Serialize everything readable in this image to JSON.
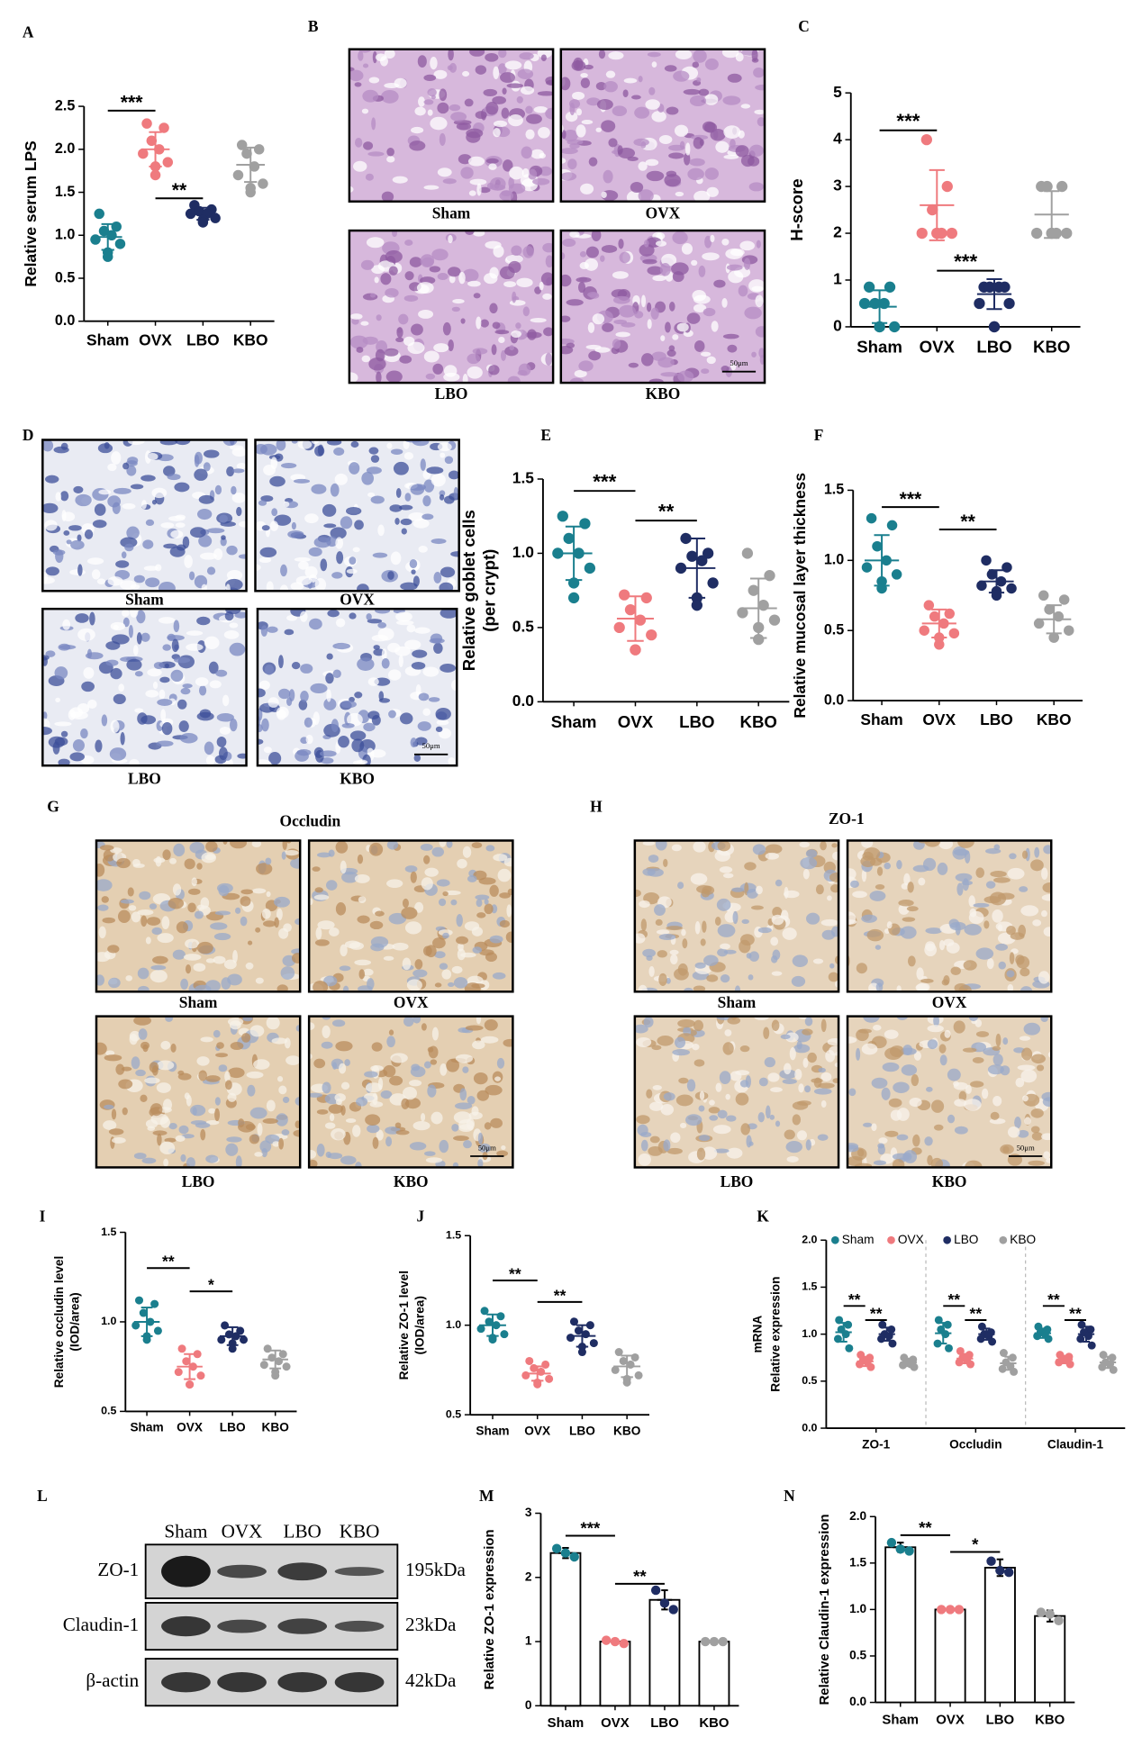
{
  "chart_data": [
    {
      "type": "dot",
      "label": "A",
      "y_label": [
        "Relative serum LPS"
      ],
      "categories": [
        "Sham",
        "OVX",
        "LBO",
        "KBO"
      ],
      "colors": [
        "#1a7f8e",
        "#ef7a7e",
        "#1f2d63",
        "#a0a0a0"
      ],
      "values": [
        [
          1.25,
          1.1,
          1.05,
          1.0,
          0.95,
          0.9,
          0.8,
          0.75
        ],
        [
          2.3,
          2.25,
          2.1,
          2.0,
          1.95,
          1.85,
          1.8,
          1.7
        ],
        [
          1.35,
          1.3,
          1.28,
          1.25,
          1.25,
          1.2,
          1.18,
          1.15
        ],
        [
          2.05,
          2.0,
          1.95,
          1.8,
          1.7,
          1.6,
          1.55,
          1.5
        ]
      ],
      "mean": [
        0.98,
        2.0,
        1.25,
        1.82
      ],
      "sd": [
        0.15,
        0.2,
        0.07,
        0.2
      ],
      "ylim": [
        0,
        2.5
      ],
      "yticks": [
        {
          "value": 0,
          "label": "0.0"
        },
        0.5,
        {
          "value": 1,
          "label": "1.0"
        },
        1.5,
        {
          "value": 2,
          "label": "2.0"
        },
        2.5
      ],
      "annotations": [
        {
          "text": "***",
          "from": 0,
          "to": 1,
          "y": 2.45
        },
        {
          "text": "**",
          "from": 1,
          "to": 2,
          "y": 1.43
        }
      ]
    },
    {
      "type": "dot",
      "label": "C",
      "y_label": [
        "H-score"
      ],
      "categories": [
        "Sham",
        "OVX",
        "LBO",
        "KBO"
      ],
      "colors": [
        "#1a7f8e",
        "#ef7a7e",
        "#1f2d63",
        "#a0a0a0"
      ],
      "values": [
        [
          0.85,
          0.85,
          0.5,
          0.5,
          0.5,
          0,
          0,
          0
        ],
        [
          4,
          3,
          2.5,
          2,
          2,
          2,
          2,
          2
        ],
        [
          0.85,
          0.85,
          0.85,
          0.85,
          0.5,
          0.5,
          0,
          0
        ],
        [
          3,
          3,
          3,
          2,
          2,
          2,
          2,
          2
        ]
      ],
      "mean": [
        0.43,
        2.6,
        0.7,
        2.4
      ],
      "sd": [
        0.35,
        0.75,
        0.32,
        0.5
      ],
      "ylim": [
        0,
        5
      ],
      "yticks": [
        0,
        1,
        2,
        3,
        4,
        5
      ],
      "annotations": [
        {
          "text": "***",
          "from": 0,
          "to": 1,
          "y": 4.2
        },
        {
          "text": "***",
          "from": 1,
          "to": 2,
          "y": 1.2
        }
      ]
    },
    {
      "type": "dot",
      "label": "E",
      "y_label": [
        "Relative goblet cells",
        "(per crypt)"
      ],
      "categories": [
        "Sham",
        "OVX",
        "LBO",
        "KBO"
      ],
      "colors": [
        "#1a7f8e",
        "#ef7a7e",
        "#1f2d63",
        "#a0a0a0"
      ],
      "values": [
        [
          1.25,
          1.2,
          1.1,
          1.0,
          1.0,
          0.9,
          0.8,
          0.7
        ],
        [
          0.72,
          0.7,
          0.62,
          0.55,
          0.5,
          0.45,
          0.35,
          0.35
        ],
        [
          1.1,
          1.0,
          0.98,
          0.95,
          0.9,
          0.8,
          0.7,
          0.65
        ],
        [
          1.0,
          0.85,
          0.75,
          0.65,
          0.6,
          0.55,
          0.5,
          0.42
        ]
      ],
      "mean": [
        1.0,
        0.56,
        0.9,
        0.63
      ],
      "sd": [
        0.18,
        0.15,
        0.2,
        0.2
      ],
      "ylim": [
        0,
        1.5
      ],
      "yticks": [
        {
          "value": 0,
          "label": "0.0"
        },
        0.5,
        {
          "value": 1,
          "label": "1.0"
        },
        1.5
      ],
      "annotations": [
        {
          "text": "***",
          "from": 0,
          "to": 1,
          "y": 1.42
        },
        {
          "text": "**",
          "from": 1,
          "to": 2,
          "y": 1.22
        }
      ]
    },
    {
      "type": "dot",
      "label": "F",
      "y_label": [
        "Relative mucosal layer thickness"
      ],
      "categories": [
        "Sham",
        "OVX",
        "LBO",
        "KBO"
      ],
      "colors": [
        "#1a7f8e",
        "#ef7a7e",
        "#1f2d63",
        "#a0a0a0"
      ],
      "values": [
        [
          1.3,
          1.25,
          1.1,
          1.0,
          0.95,
          0.9,
          0.85,
          0.8
        ],
        [
          0.68,
          0.62,
          0.6,
          0.55,
          0.5,
          0.48,
          0.45,
          0.4
        ],
        [
          1.0,
          0.95,
          0.9,
          0.85,
          0.82,
          0.8,
          0.78,
          0.75
        ],
        [
          0.75,
          0.72,
          0.65,
          0.6,
          0.55,
          0.5,
          0.45,
          0.45
        ]
      ],
      "mean": [
        1.0,
        0.55,
        0.85,
        0.58
      ],
      "sd": [
        0.18,
        0.1,
        0.08,
        0.1
      ],
      "ylim": [
        0,
        1.5
      ],
      "yticks": [
        {
          "value": 0,
          "label": "0.0"
        },
        0.5,
        {
          "value": 1,
          "label": "1.0"
        },
        1.5
      ],
      "annotations": [
        {
          "text": "***",
          "from": 0,
          "to": 1,
          "y": 1.38
        },
        {
          "text": "**",
          "from": 1,
          "to": 2,
          "y": 1.22
        }
      ]
    },
    {
      "type": "dot",
      "label": "I",
      "y_label": [
        "Relative occludin level",
        "(IOD/area)"
      ],
      "categories": [
        "Sham",
        "OVX",
        "LBO",
        "KBO"
      ],
      "colors": [
        "#1a7f8e",
        "#ef7a7e",
        "#1f2d63",
        "#a0a0a0"
      ],
      "values": [
        [
          1.12,
          1.1,
          1.05,
          1.0,
          0.98,
          0.95,
          0.92,
          0.9
        ],
        [
          0.85,
          0.82,
          0.78,
          0.75,
          0.72,
          0.7,
          0.65,
          0.65
        ],
        [
          0.98,
          0.95,
          0.93,
          0.92,
          0.9,
          0.9,
          0.88,
          0.85
        ],
        [
          0.85,
          0.82,
          0.8,
          0.78,
          0.76,
          0.75,
          0.72,
          0.7
        ]
      ],
      "mean": [
        1.0,
        0.75,
        0.92,
        0.79
      ],
      "sd": [
        0.08,
        0.07,
        0.05,
        0.05
      ],
      "ylim": [
        0.5,
        1.5
      ],
      "yticks": [
        0.5,
        {
          "value": 1,
          "label": "1.0"
        },
        1.5
      ],
      "annotations": [
        {
          "text": "**",
          "from": 0,
          "to": 1,
          "y": 1.3
        },
        {
          "text": "*",
          "from": 1,
          "to": 2,
          "y": 1.17
        }
      ]
    },
    {
      "type": "dot",
      "label": "J",
      "y_label": [
        "Relative ZO-1 level",
        "(IOD/area)"
      ],
      "categories": [
        "Sham",
        "OVX",
        "LBO",
        "KBO"
      ],
      "colors": [
        "#1a7f8e",
        "#ef7a7e",
        "#1f2d63",
        "#a0a0a0"
      ],
      "values": [
        [
          1.08,
          1.05,
          1.02,
          1.0,
          0.98,
          0.95,
          0.93,
          0.92
        ],
        [
          0.8,
          0.78,
          0.76,
          0.74,
          0.72,
          0.7,
          0.68,
          0.67
        ],
        [
          1.02,
          1.0,
          0.97,
          0.95,
          0.93,
          0.9,
          0.88,
          0.85
        ],
        [
          0.85,
          0.82,
          0.8,
          0.78,
          0.75,
          0.72,
          0.7,
          0.68
        ]
      ],
      "mean": [
        1.0,
        0.73,
        0.94,
        0.77
      ],
      "sd": [
        0.06,
        0.04,
        0.06,
        0.06
      ],
      "ylim": [
        0.5,
        1.5
      ],
      "yticks": [
        0.5,
        {
          "value": 1,
          "label": "1.0"
        },
        1.5
      ],
      "annotations": [
        {
          "text": "**",
          "from": 0,
          "to": 1,
          "y": 1.25
        },
        {
          "text": "**",
          "from": 1,
          "to": 2,
          "y": 1.13
        }
      ]
    },
    {
      "type": "groupdot",
      "label": "K",
      "y_label": [
        "mRNA",
        "Relative expression"
      ],
      "categories": [
        "ZO-1",
        "Occludin",
        "Claudin-1"
      ],
      "series": [
        {
          "name": "Sham",
          "color": "#1a7f8e",
          "values": [
            [
              1.15,
              1.1,
              1.05,
              1.0,
              0.95,
              0.85
            ],
            [
              1.15,
              1.1,
              1.05,
              1.0,
              0.9,
              0.85
            ],
            [
              1.08,
              1.05,
              1.02,
              1.0,
              0.98,
              0.95
            ]
          ],
          "mean": [
            1.02,
            1.01,
            1.01
          ],
          "sd": [
            0.1,
            0.11,
            0.05
          ]
        },
        {
          "name": "OVX",
          "color": "#ef7a7e",
          "values": [
            [
              0.78,
              0.75,
              0.72,
              0.7,
              0.68,
              0.65
            ],
            [
              0.82,
              0.78,
              0.75,
              0.72,
              0.7,
              0.68
            ],
            [
              0.78,
              0.76,
              0.74,
              0.72,
              0.7,
              0.68
            ]
          ],
          "mean": [
            0.71,
            0.74,
            0.73
          ],
          "sd": [
            0.05,
            0.05,
            0.04
          ]
        },
        {
          "name": "LBO",
          "color": "#1f2d63",
          "values": [
            [
              1.1,
              1.05,
              1.0,
              0.98,
              0.95,
              0.9
            ],
            [
              1.08,
              1.02,
              1.0,
              0.98,
              0.95,
              0.92
            ],
            [
              1.1,
              1.05,
              1.02,
              0.98,
              0.95,
              0.88
            ]
          ],
          "mean": [
            1.0,
            1.0,
            1.0
          ],
          "sd": [
            0.07,
            0.06,
            0.08
          ]
        },
        {
          "name": "KBO",
          "color": "#a0a0a0",
          "values": [
            [
              0.75,
              0.73,
              0.7,
              0.68,
              0.67,
              0.65
            ],
            [
              0.8,
              0.75,
              0.7,
              0.66,
              0.63,
              0.6
            ],
            [
              0.78,
              0.75,
              0.7,
              0.68,
              0.65,
              0.62
            ]
          ],
          "mean": [
            0.7,
            0.69,
            0.7
          ],
          "sd": [
            0.04,
            0.07,
            0.06
          ]
        }
      ],
      "ylim": [
        0,
        2
      ],
      "yticks": [
        {
          "value": 0,
          "label": "0.0"
        },
        0.5,
        {
          "value": 1,
          "label": "1.0"
        },
        1.5,
        {
          "value": 2,
          "label": "2.0"
        }
      ],
      "legend": "top",
      "annotations": [
        {
          "text": "**",
          "category": 0,
          "from": 0,
          "to": 1,
          "y": 1.3
        },
        {
          "text": "**",
          "category": 0,
          "from": 1,
          "to": 2,
          "y": 1.15
        },
        {
          "text": "**",
          "category": 1,
          "from": 0,
          "to": 1,
          "y": 1.3
        },
        {
          "text": "**",
          "category": 1,
          "from": 1,
          "to": 2,
          "y": 1.15
        },
        {
          "text": "**",
          "category": 2,
          "from": 0,
          "to": 1,
          "y": 1.3
        },
        {
          "text": "**",
          "category": 2,
          "from": 1,
          "to": 2,
          "y": 1.15
        }
      ]
    },
    {
      "type": "bar",
      "label": "M",
      "y_label": [
        "Relative ZO-1 expression"
      ],
      "categories": [
        "Sham",
        "OVX",
        "LBO",
        "KBO"
      ],
      "colors": [
        "#1a7f8e",
        "#ef7a7e",
        "#1f2d63",
        "#a0a0a0"
      ],
      "values": [
        2.38,
        1.0,
        1.65,
        1.0
      ],
      "sd": [
        0.08,
        0.03,
        0.15,
        0.01
      ],
      "points": [
        [
          2.45,
          2.38,
          2.32
        ],
        [
          1.02,
          1.0,
          0.97
        ],
        [
          1.8,
          1.6,
          1.5
        ],
        [
          1.0,
          1.0,
          1.0
        ]
      ],
      "ylim": [
        0,
        3
      ],
      "yticks": [
        0,
        1,
        2,
        3
      ],
      "annotations": [
        {
          "text": "***",
          "from": 0,
          "to": 1,
          "y": 2.65
        },
        {
          "text": "**",
          "from": 1,
          "to": 2,
          "y": 1.9
        }
      ]
    },
    {
      "type": "bar",
      "label": "N",
      "y_label": [
        "Relative Claudin-1 expression"
      ],
      "categories": [
        "Sham",
        "OVX",
        "LBO",
        "KBO"
      ],
      "colors": [
        "#1a7f8e",
        "#ef7a7e",
        "#1f2d63",
        "#a0a0a0"
      ],
      "values": [
        1.67,
        1.0,
        1.45,
        0.93
      ],
      "sd": [
        0.05,
        0.01,
        0.09,
        0.06
      ],
      "points": [
        [
          1.72,
          1.65,
          1.63
        ],
        [
          1.0,
          1.0,
          1.0
        ],
        [
          1.52,
          1.42,
          1.4
        ],
        [
          0.97,
          0.95,
          0.88
        ]
      ],
      "ylim": [
        0,
        2
      ],
      "yticks": [
        {
          "value": 0,
          "label": "0.0"
        },
        0.5,
        {
          "value": 1,
          "label": "1.0"
        },
        1.5,
        {
          "value": 2,
          "label": "2.0"
        }
      ],
      "annotations": [
        {
          "text": "**",
          "from": 0,
          "to": 1,
          "y": 1.8
        },
        {
          "text": "*",
          "from": 1,
          "to": 2,
          "y": 1.62
        }
      ]
    }
  ],
  "images": [
    {
      "label": "B",
      "panels": [
        "Sham",
        "OVX",
        "LBO",
        "KBO"
      ],
      "scale": "50μm"
    },
    {
      "label": "D",
      "panels": [
        "Sham",
        "OVX",
        "LBO",
        "KBO"
      ],
      "scale": "50μm"
    },
    {
      "label": "G",
      "title": "Occludin",
      "panels": [
        "Sham",
        "OVX",
        "LBO",
        "KBO"
      ],
      "scale": "50μm"
    },
    {
      "label": "H",
      "title": "ZO-1",
      "panels": [
        "Sham",
        "OVX",
        "LBO",
        "KBO"
      ],
      "scale": "50μm"
    }
  ],
  "blot": {
    "label": "L",
    "lanes": [
      "Sham",
      "OVX",
      "LBO",
      "KBO"
    ],
    "rows": [
      {
        "name": "ZO-1",
        "size": "195kDa"
      },
      {
        "name": "Claudin-1",
        "size": "23kDa"
      },
      {
        "name": "β-actin",
        "size": "42kDa"
      }
    ]
  }
}
